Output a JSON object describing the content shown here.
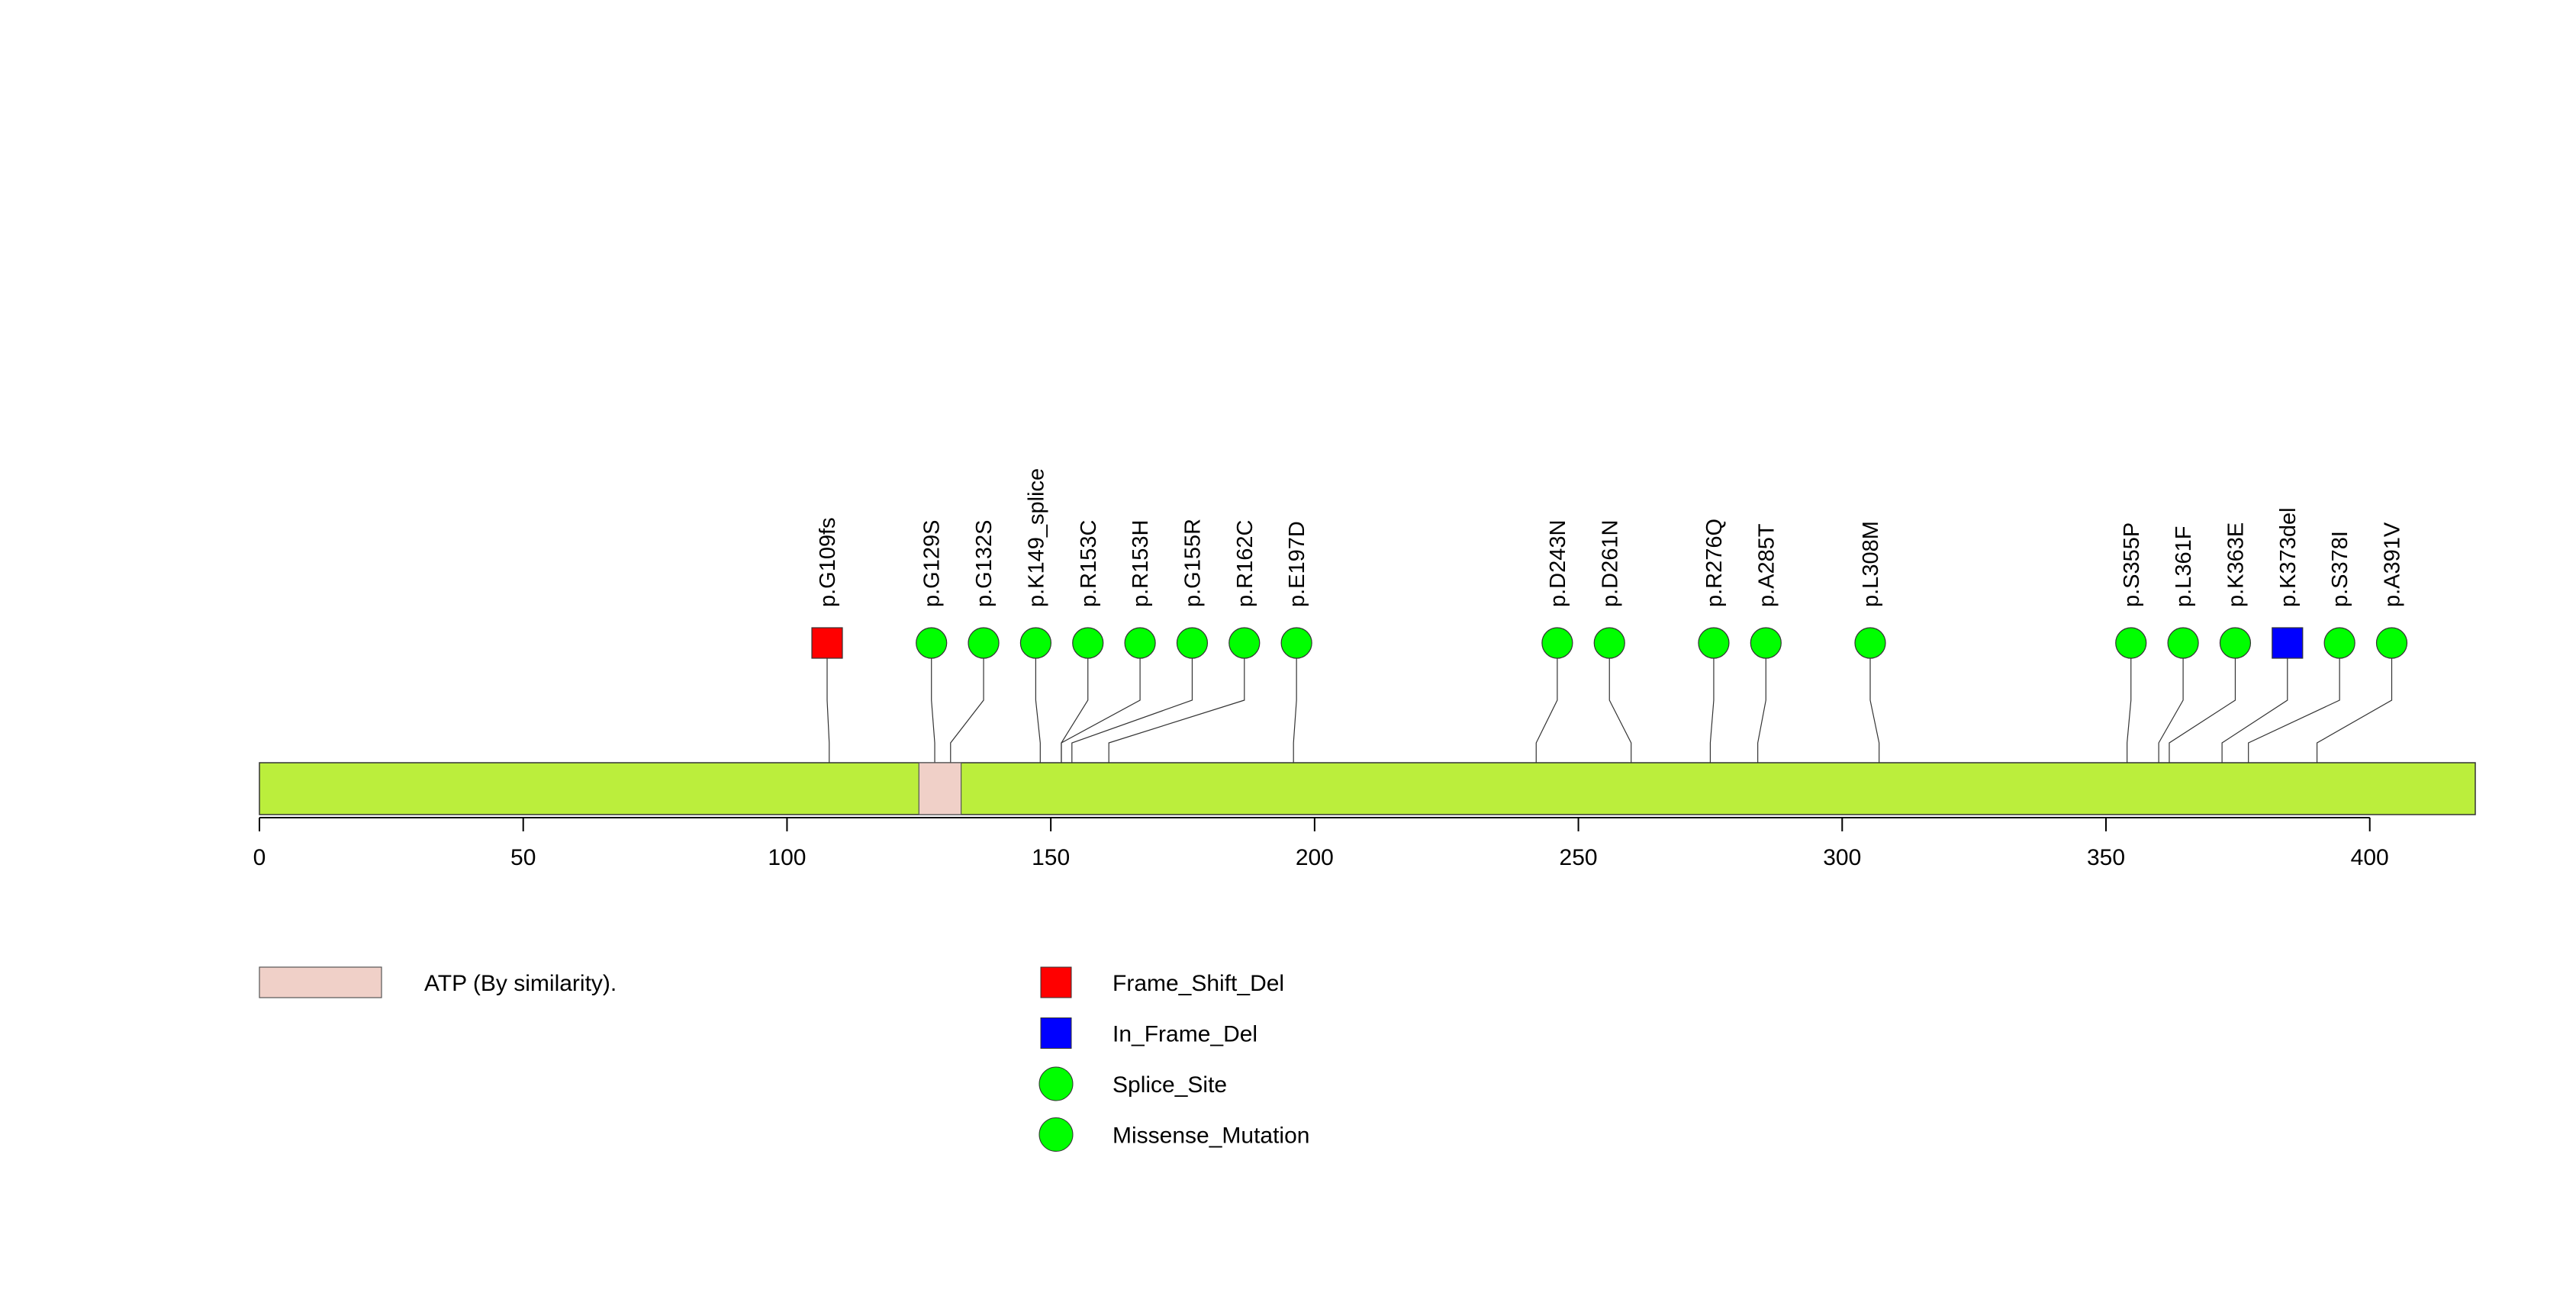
{
  "chart_data": {
    "type": "lollipop",
    "xlim": [
      0,
      420
    ],
    "ticks": [
      0,
      50,
      100,
      150,
      200,
      250,
      300,
      350,
      400
    ],
    "protein_color": "#bbee3c",
    "domains": [
      {
        "label": "ATP (By similarity).",
        "start": 125,
        "end": 133,
        "color": "#f0d0c8"
      }
    ],
    "mutations": [
      {
        "label": "p.G109fs",
        "pos": 108,
        "type": "Frame_Shift_Del"
      },
      {
        "label": "p.G129S",
        "pos": 128,
        "type": "Missense_Mutation"
      },
      {
        "label": "p.G132S",
        "pos": 131,
        "type": "Missense_Mutation"
      },
      {
        "label": "p.K149_splice",
        "pos": 148,
        "type": "Splice_Site"
      },
      {
        "label": "p.R153C",
        "pos": 152,
        "type": "Missense_Mutation"
      },
      {
        "label": "p.R153H",
        "pos": 152,
        "type": "Missense_Mutation"
      },
      {
        "label": "p.G155R",
        "pos": 154,
        "type": "Missense_Mutation"
      },
      {
        "label": "p.R162C",
        "pos": 161,
        "type": "Missense_Mutation"
      },
      {
        "label": "p.E197D",
        "pos": 196,
        "type": "Missense_Mutation"
      },
      {
        "label": "p.D243N",
        "pos": 242,
        "type": "Missense_Mutation"
      },
      {
        "label": "p.D261N",
        "pos": 260,
        "type": "Missense_Mutation"
      },
      {
        "label": "p.R276Q",
        "pos": 275,
        "type": "Missense_Mutation"
      },
      {
        "label": "p.A285T",
        "pos": 284,
        "type": "Missense_Mutation"
      },
      {
        "label": "p.L308M",
        "pos": 307,
        "type": "Missense_Mutation"
      },
      {
        "label": "p.S355P",
        "pos": 354,
        "type": "Missense_Mutation"
      },
      {
        "label": "p.L361F",
        "pos": 360,
        "type": "Missense_Mutation"
      },
      {
        "label": "p.K363E",
        "pos": 362,
        "type": "Missense_Mutation"
      },
      {
        "label": "p.K373del",
        "pos": 372,
        "type": "In_Frame_Del"
      },
      {
        "label": "p.S378I",
        "pos": 377,
        "type": "Missense_Mutation"
      },
      {
        "label": "p.A391V",
        "pos": 390,
        "type": "Missense_Mutation"
      }
    ],
    "legend_types": [
      {
        "label": "Frame_Shift_Del",
        "shape": "square",
        "color": "#ff0000"
      },
      {
        "label": "In_Frame_Del",
        "shape": "square",
        "color": "#0000ff"
      },
      {
        "label": "Splice_Site",
        "shape": "circle",
        "color": "#00ff00"
      },
      {
        "label": "Missense_Mutation",
        "shape": "circle",
        "color": "#00ff00"
      }
    ]
  }
}
